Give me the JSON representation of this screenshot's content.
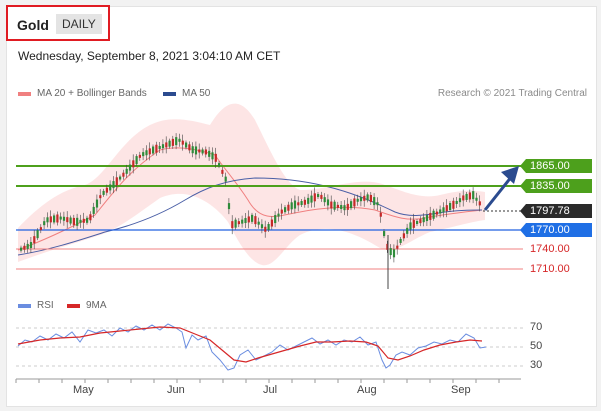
{
  "header": {
    "instrument": "Gold",
    "timeframe": "DAILY"
  },
  "datetime": "Wednesday, September 8, 2021 3:04:10 AM CET",
  "legend": {
    "ma20_label": "MA 20 + Bollinger Bands",
    "ma50_label": "MA 50",
    "research": "Research © 2021 Trading Central"
  },
  "levels": {
    "r2": "1865.00",
    "r1": "1835.00",
    "price": "1797.78",
    "pivot": "1770.00",
    "s1": "1740.00",
    "s2": "1710.00"
  },
  "rsi_legend": {
    "rsi_label": "RSI",
    "ma_label": "9MA"
  },
  "rsi_axis": [
    "70",
    "50",
    "30"
  ],
  "x_axis": [
    "May",
    "Jun",
    "Jul",
    "Aug",
    "Sep"
  ],
  "colors": {
    "accent_red": "#e01b22",
    "green_level": "#4da01c",
    "blue_level": "#2060e0",
    "bollinger": "#fde0e0",
    "ma20": "#f08080",
    "ma50": "#4a5fa6"
  },
  "chart_data": {
    "type": "candlestick",
    "reference_levels": [
      1865.0,
      1835.0,
      1797.78,
      1770.0,
      1740.0,
      1710.0
    ],
    "rsi_levels": [
      70,
      50,
      30
    ],
    "months": [
      "May",
      "Jun",
      "Jul",
      "Aug",
      "Sep"
    ]
  }
}
